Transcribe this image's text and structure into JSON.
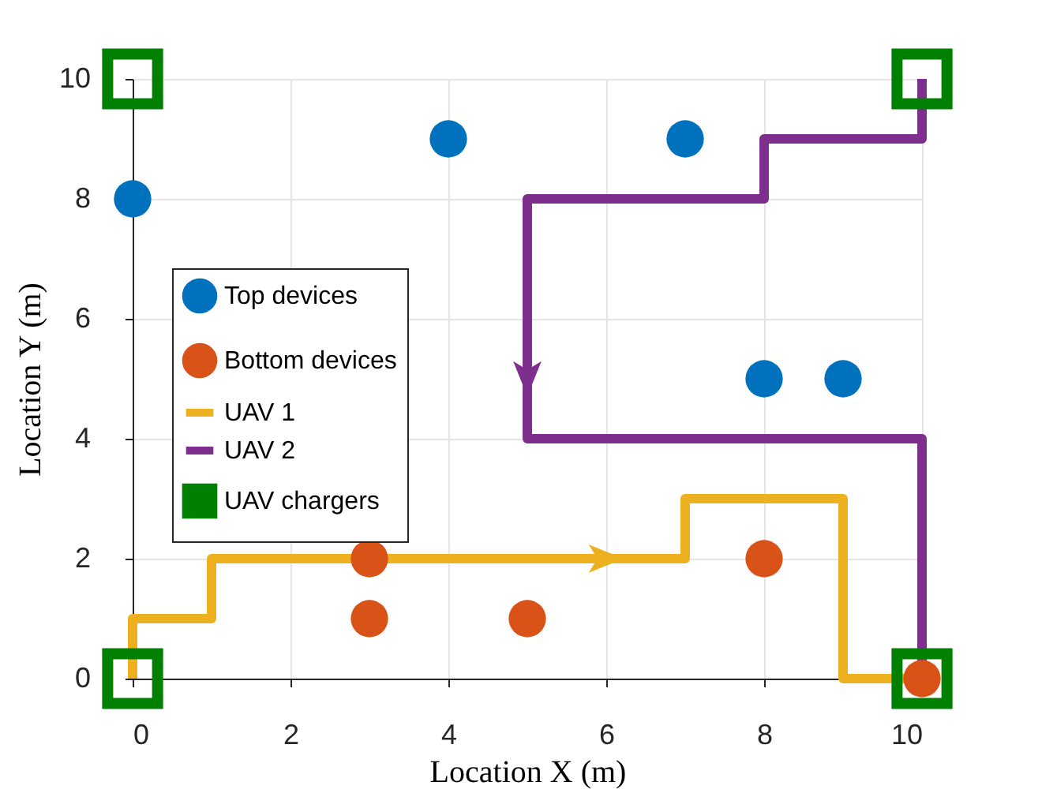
{
  "chart_data": {
    "type": "scatter",
    "xlabel": "Location X (m)",
    "ylabel": "Location Y (m)",
    "xlim": [
      0,
      10
    ],
    "xticks": [
      0,
      2,
      4,
      6,
      8,
      10
    ],
    "ylim": [
      0,
      10
    ],
    "yticks": [
      0,
      2,
      4,
      6,
      8,
      10
    ],
    "grid": true,
    "legend": "left",
    "series": [
      {
        "name": "Top devices",
        "marker": "circle",
        "color": "#0072bd",
        "x": [
          0,
          4,
          7,
          8,
          9
        ],
        "values": [
          8,
          9,
          9,
          5,
          5
        ]
      },
      {
        "name": "Bottom devices",
        "marker": "circle",
        "color": "#d95319",
        "x": [
          3,
          3,
          5,
          8,
          10
        ],
        "values": [
          2,
          1,
          1,
          2,
          0
        ]
      },
      {
        "name": "UAV 1",
        "type": "line",
        "color": "#edb120",
        "x": [
          0,
          0,
          1,
          1,
          7,
          7,
          9,
          9,
          10
        ],
        "values": [
          0,
          1,
          1,
          2,
          2,
          3,
          3,
          0,
          0
        ]
      },
      {
        "name": "UAV 2",
        "type": "line",
        "color": "#7e2f8e",
        "x": [
          10,
          10,
          8,
          8,
          5,
          5,
          10,
          10
        ],
        "values": [
          10,
          9,
          9,
          8,
          8,
          4,
          4,
          0
        ]
      },
      {
        "name": "UAV chargers",
        "marker": "square",
        "color": "#008000",
        "x": [
          0,
          0,
          10,
          10
        ],
        "values": [
          0,
          10,
          10,
          0
        ]
      }
    ]
  }
}
